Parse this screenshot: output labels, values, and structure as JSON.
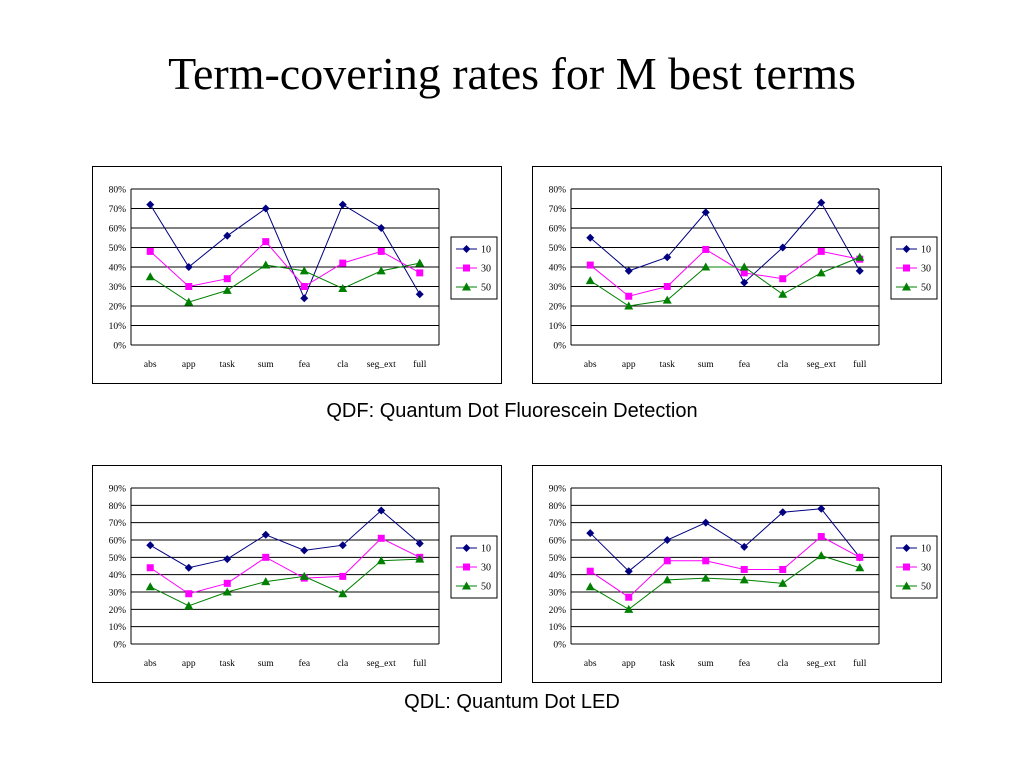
{
  "slide": {
    "title": "Term-covering rates for M best terms",
    "caption_qdf": "QDF: Quantum Dot Fluorescein Detection",
    "caption_qdl": "QDL: Quantum Dot LED"
  },
  "chart_data": [
    {
      "type": "line",
      "categories": [
        "abs",
        "app",
        "task",
        "sum",
        "fea",
        "cla",
        "seg_ext",
        "full"
      ],
      "ylim": [
        0,
        80
      ],
      "yticks": [
        0,
        10,
        20,
        30,
        40,
        50,
        60,
        70,
        80
      ],
      "ytick_labels": [
        "0%",
        "10%",
        "20%",
        "30%",
        "40%",
        "50%",
        "60%",
        "70%",
        "80%"
      ],
      "grid": true,
      "legend": "right",
      "series": [
        {
          "name": "10",
          "color": "#000080",
          "marker": "diamond",
          "values": [
            72,
            40,
            56,
            70,
            24,
            72,
            60,
            26
          ]
        },
        {
          "name": "30",
          "color": "#ff00ff",
          "marker": "square",
          "values": [
            48,
            30,
            34,
            53,
            30,
            42,
            48,
            37
          ]
        },
        {
          "name": "50",
          "color": "#008000",
          "marker": "triangle",
          "values": [
            35,
            22,
            28,
            41,
            38,
            29,
            38,
            42
          ]
        }
      ]
    },
    {
      "type": "line",
      "categories": [
        "abs",
        "app",
        "task",
        "sum",
        "fea",
        "cla",
        "seg_ext",
        "full"
      ],
      "ylim": [
        0,
        80
      ],
      "yticks": [
        0,
        10,
        20,
        30,
        40,
        50,
        60,
        70,
        80
      ],
      "ytick_labels": [
        "0%",
        "10%",
        "20%",
        "30%",
        "40%",
        "50%",
        "60%",
        "70%",
        "80%"
      ],
      "grid": true,
      "legend": "right",
      "series": [
        {
          "name": "10",
          "color": "#000080",
          "marker": "diamond",
          "values": [
            55,
            38,
            45,
            68,
            32,
            50,
            73,
            38
          ]
        },
        {
          "name": "30",
          "color": "#ff00ff",
          "marker": "square",
          "values": [
            41,
            25,
            30,
            49,
            37,
            34,
            48,
            44
          ]
        },
        {
          "name": "50",
          "color": "#008000",
          "marker": "triangle",
          "values": [
            33,
            20,
            23,
            40,
            40,
            26,
            37,
            45
          ]
        }
      ]
    },
    {
      "type": "line",
      "categories": [
        "abs",
        "app",
        "task",
        "sum",
        "fea",
        "cla",
        "seg_ext",
        "full"
      ],
      "ylim": [
        0,
        90
      ],
      "yticks": [
        0,
        10,
        20,
        30,
        40,
        50,
        60,
        70,
        80,
        90
      ],
      "ytick_labels": [
        "0%",
        "10%",
        "20%",
        "30%",
        "40%",
        "50%",
        "60%",
        "70%",
        "80%",
        "90%"
      ],
      "grid": true,
      "legend": "right",
      "series": [
        {
          "name": "10",
          "color": "#000080",
          "marker": "diamond",
          "values": [
            57,
            44,
            49,
            63,
            54,
            57,
            77,
            58
          ]
        },
        {
          "name": "30",
          "color": "#ff00ff",
          "marker": "square",
          "values": [
            44,
            29,
            35,
            50,
            38,
            39,
            61,
            50
          ]
        },
        {
          "name": "50",
          "color": "#008000",
          "marker": "triangle",
          "values": [
            33,
            22,
            30,
            36,
            39,
            29,
            48,
            49
          ]
        }
      ]
    },
    {
      "type": "line",
      "categories": [
        "abs",
        "app",
        "task",
        "sum",
        "fea",
        "cla",
        "seg_ext",
        "full"
      ],
      "ylim": [
        0,
        90
      ],
      "yticks": [
        0,
        10,
        20,
        30,
        40,
        50,
        60,
        70,
        80,
        90
      ],
      "ytick_labels": [
        "0%",
        "10%",
        "20%",
        "30%",
        "40%",
        "50%",
        "60%",
        "70%",
        "80%",
        "90%"
      ],
      "grid": true,
      "legend": "right",
      "series": [
        {
          "name": "10",
          "color": "#000080",
          "marker": "diamond",
          "values": [
            64,
            42,
            60,
            70,
            56,
            76,
            78,
            50
          ]
        },
        {
          "name": "30",
          "color": "#ff00ff",
          "marker": "square",
          "values": [
            42,
            27,
            48,
            48,
            43,
            43,
            62,
            50
          ]
        },
        {
          "name": "50",
          "color": "#008000",
          "marker": "triangle",
          "values": [
            33,
            20,
            37,
            38,
            37,
            35,
            51,
            44
          ]
        }
      ]
    }
  ]
}
